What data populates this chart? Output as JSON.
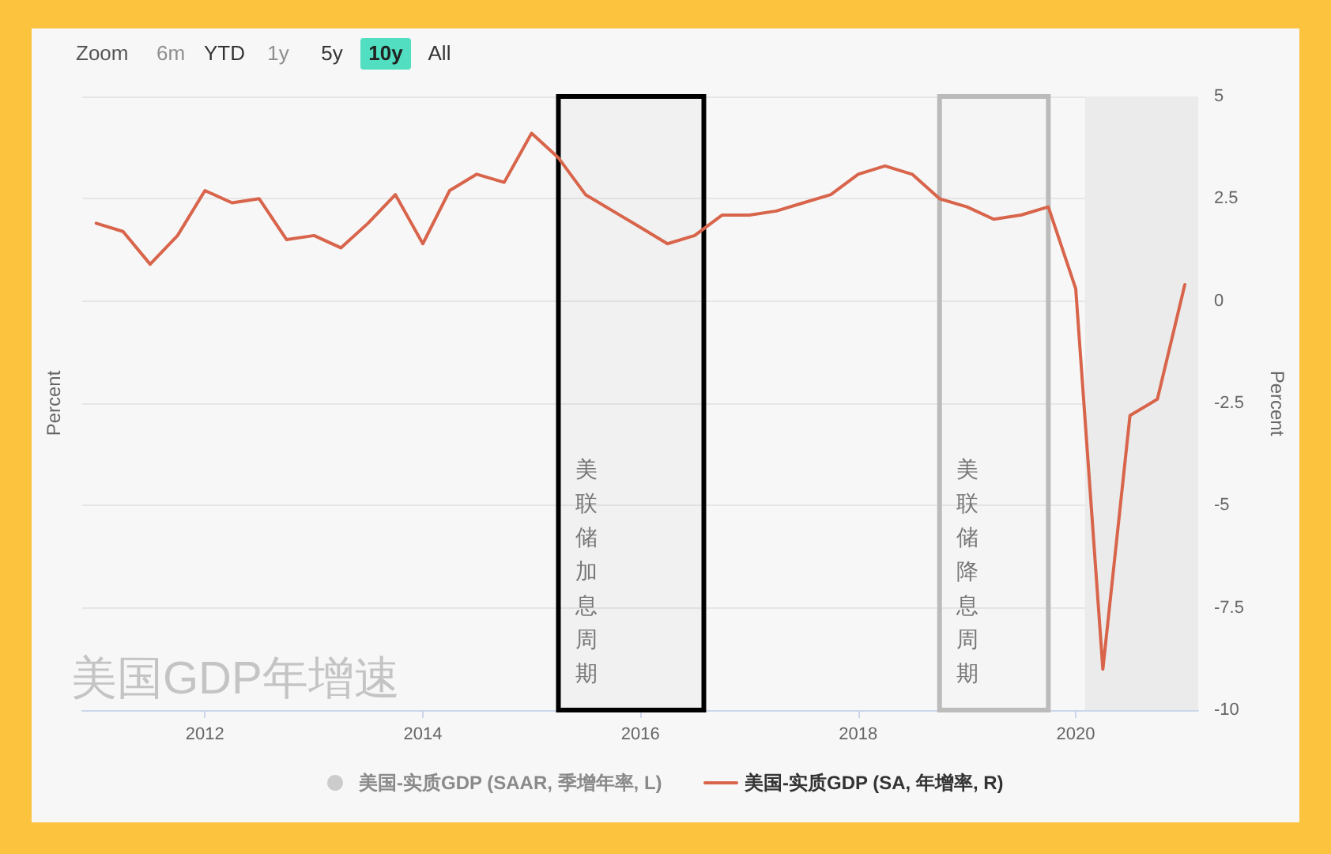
{
  "chart_data": {
    "type": "line",
    "title": "美国GDP年增速",
    "ylabel": "Percent",
    "y2label": "Percent",
    "annotations": [
      "Zoom",
      "6m",
      "YTD",
      "1y",
      "5y",
      "10y",
      "All"
    ],
    "x": [
      "2011-01",
      "2011-04",
      "2011-07",
      "2011-10",
      "2012-01",
      "2012-04",
      "2012-07",
      "2012-10",
      "2013-01",
      "2013-04",
      "2013-07",
      "2013-10",
      "2014-01",
      "2014-04",
      "2014-07",
      "2014-10",
      "2015-01",
      "2015-04",
      "2015-07",
      "2015-10",
      "2016-01",
      "2016-04",
      "2016-07",
      "2016-10",
      "2017-01",
      "2017-04",
      "2017-07",
      "2017-10",
      "2018-01",
      "2018-04",
      "2018-07",
      "2018-10",
      "2019-01",
      "2019-04",
      "2019-07",
      "2019-10",
      "2020-01",
      "2020-04",
      "2020-07",
      "2020-10",
      "2021-01"
    ],
    "series": [
      {
        "name": "美国-实质GDP (SAAR, 季增年率, L)",
        "type": "bar",
        "color": "#cccccc",
        "values": [
          null,
          null,
          null,
          null,
          null,
          null,
          null,
          null,
          null,
          null,
          null,
          null,
          null,
          null,
          null,
          null,
          null,
          null,
          null,
          null,
          null,
          null,
          null,
          null,
          null,
          null,
          null,
          null,
          null,
          null,
          null,
          null,
          null,
          null,
          null,
          null,
          null,
          null,
          null,
          null,
          null
        ]
      },
      {
        "name": "美国-实质GDP (SA, 年增率, R)",
        "color": "#d8654b",
        "axis": "y2",
        "values": [
          1.9,
          1.7,
          0.9,
          1.6,
          2.7,
          2.4,
          2.5,
          1.5,
          1.6,
          1.3,
          1.9,
          2.6,
          1.4,
          2.7,
          3.1,
          2.9,
          4.1,
          3.5,
          2.6,
          2.2,
          1.8,
          1.4,
          1.6,
          2.1,
          2.1,
          2.2,
          2.4,
          2.6,
          3.1,
          3.3,
          3.1,
          2.5,
          2.3,
          2.0,
          2.1,
          2.3,
          0.3,
          -9.0,
          -2.8,
          -2.4,
          0.4
        ]
      }
    ],
    "xlim": [
      "2010-11-15",
      "2021-02-15"
    ],
    "xticks": [
      "2012",
      "2014",
      "2016",
      "2018",
      "2020"
    ],
    "y2lim": [
      -10,
      5
    ],
    "y2ticks": [
      -10,
      -7.5,
      -5,
      -2.5,
      0,
      2.5,
      5
    ],
    "bands": [
      {
        "axis": "x",
        "from": "2015-04",
        "to": "2016-08",
        "label": "美联储加息周期",
        "color": "#000000"
      },
      {
        "axis": "x",
        "from": "2018-10",
        "to": "2019-10",
        "label": "美联储降息周期",
        "color": "#bbbbbb"
      },
      {
        "axis": "x",
        "from": "2020-02",
        "to": "2021-02-15",
        "color": "#ebebeb"
      }
    ],
    "grid": "y",
    "legend": "bottom"
  }
}
